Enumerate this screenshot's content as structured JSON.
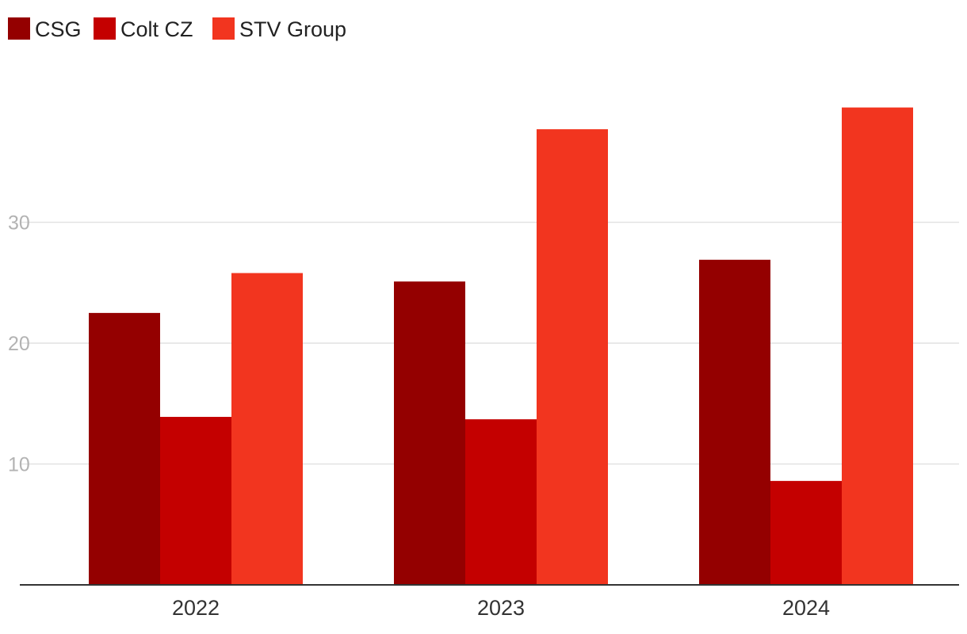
{
  "chart_data": {
    "type": "bar",
    "title": "",
    "xlabel": "",
    "ylabel": "",
    "categories": [
      "2022",
      "2023",
      "2024"
    ],
    "series": [
      {
        "name": "CSG",
        "color": "#940000",
        "values": [
          22.5,
          25.1,
          26.9
        ]
      },
      {
        "name": "Colt CZ",
        "color": "#c40000",
        "values": [
          13.9,
          13.7,
          8.6
        ]
      },
      {
        "name": "STV Group",
        "color": "#f2351f",
        "values": [
          25.8,
          37.7,
          39.5
        ]
      }
    ],
    "ylim": [
      0,
      40
    ],
    "yticks": [
      10,
      20,
      30
    ],
    "grid": true,
    "legend_position": "top-left"
  }
}
